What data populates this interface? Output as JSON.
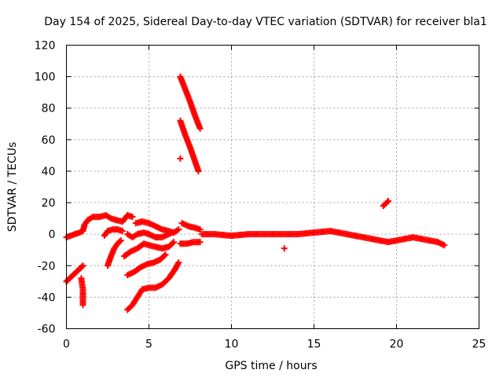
{
  "chart_data": {
    "type": "scatter",
    "title": "Day 154 of 2025, Sidereal Day-to-day VTEC variation (SDTVAR) for receiver bla1",
    "xlabel": "GPS time / hours",
    "ylabel": "SDTVAR / TECUs",
    "xlim": [
      0,
      25
    ],
    "ylim": [
      -60,
      120
    ],
    "xticks": [
      0,
      5,
      10,
      15,
      20,
      25
    ],
    "yticks": [
      -60,
      -40,
      -20,
      0,
      20,
      40,
      60,
      80,
      100,
      120
    ],
    "grid": true,
    "marker": "+",
    "color": "#ff0000",
    "series": [
      {
        "name": "arc-main",
        "points": [
          [
            0,
            -2
          ],
          [
            0.5,
            0
          ],
          [
            0.8,
            1
          ],
          [
            1.0,
            2
          ],
          [
            1.1,
            6
          ],
          [
            1.3,
            9
          ],
          [
            1.6,
            11
          ],
          [
            2.0,
            11
          ],
          [
            2.4,
            12
          ],
          [
            2.7,
            10
          ],
          [
            3.0,
            9
          ],
          [
            3.4,
            8
          ],
          [
            3.7,
            12
          ],
          [
            4.0,
            11
          ]
        ]
      },
      {
        "name": "arc-wave-upper",
        "points": [
          [
            4.2,
            7
          ],
          [
            4.6,
            8
          ],
          [
            5.0,
            7
          ],
          [
            5.4,
            5
          ],
          [
            5.8,
            3
          ],
          [
            6.2,
            2
          ],
          [
            6.5,
            1
          ],
          [
            6.8,
            3
          ]
        ]
      },
      {
        "name": "arc-wave-mid",
        "points": [
          [
            3.7,
            0
          ],
          [
            4.0,
            -2
          ],
          [
            4.3,
            0
          ],
          [
            4.7,
            1
          ],
          [
            5.0,
            0
          ],
          [
            5.4,
            -2
          ],
          [
            5.8,
            -2
          ],
          [
            6.2,
            0
          ],
          [
            6.4,
            1
          ]
        ]
      },
      {
        "name": "arc-wave-lower",
        "points": [
          [
            3.5,
            -14
          ],
          [
            3.9,
            -11
          ],
          [
            4.3,
            -9
          ],
          [
            4.7,
            -6
          ],
          [
            5.0,
            -7
          ],
          [
            5.4,
            -8
          ],
          [
            5.8,
            -9
          ],
          [
            6.2,
            -8
          ],
          [
            6.5,
            -5
          ]
        ]
      },
      {
        "name": "arc-steep-left",
        "points": [
          [
            2.5,
            -20
          ],
          [
            2.7,
            -14
          ],
          [
            2.9,
            -9
          ],
          [
            3.1,
            -6
          ],
          [
            3.3,
            -4
          ]
        ]
      },
      {
        "name": "arc-mid-left",
        "points": [
          [
            2.3,
            -1
          ],
          [
            2.5,
            2
          ],
          [
            2.8,
            3
          ],
          [
            3.1,
            3
          ],
          [
            3.4,
            2
          ]
        ]
      },
      {
        "name": "arc-deep",
        "points": [
          [
            3.7,
            -48
          ],
          [
            4.0,
            -45
          ],
          [
            4.3,
            -40
          ],
          [
            4.6,
            -35
          ],
          [
            5.0,
            -34
          ],
          [
            5.4,
            -34
          ],
          [
            5.8,
            -32
          ],
          [
            6.2,
            -28
          ],
          [
            6.6,
            -22
          ],
          [
            6.8,
            -18
          ]
        ]
      },
      {
        "name": "arc-descend",
        "points": [
          [
            3.7,
            -26
          ],
          [
            4.1,
            -24
          ],
          [
            4.5,
            -21
          ],
          [
            4.9,
            -19
          ],
          [
            5.3,
            -18
          ],
          [
            5.7,
            -16
          ],
          [
            6.0,
            -13
          ]
        ]
      },
      {
        "name": "arc-early-low",
        "points": [
          [
            0,
            -30
          ],
          [
            0.2,
            -28
          ],
          [
            0.4,
            -26
          ],
          [
            0.6,
            -24
          ],
          [
            0.8,
            -22
          ],
          [
            1.0,
            -20
          ]
        ]
      },
      {
        "name": "early-outliers",
        "points": [
          [
            0.9,
            -28
          ],
          [
            1.0,
            -35
          ],
          [
            1.0,
            -45
          ]
        ]
      },
      {
        "name": "spike-upper",
        "points": [
          [
            6.9,
            100
          ],
          [
            7.2,
            92
          ],
          [
            7.5,
            84
          ],
          [
            7.8,
            75
          ],
          [
            8.1,
            67
          ]
        ]
      },
      {
        "name": "spike-lower",
        "points": [
          [
            6.9,
            72
          ],
          [
            7.2,
            63
          ],
          [
            7.5,
            55
          ],
          [
            7.8,
            46
          ],
          [
            8.0,
            40
          ]
        ]
      },
      {
        "name": "spike-outlier",
        "points": [
          [
            6.9,
            48
          ]
        ]
      },
      {
        "name": "arc-post-spike",
        "points": [
          [
            7.0,
            7
          ],
          [
            7.4,
            5
          ],
          [
            7.8,
            4
          ],
          [
            8.1,
            3
          ]
        ]
      },
      {
        "name": "arc-flat-low",
        "points": [
          [
            6.9,
            -6
          ],
          [
            7.3,
            -6
          ],
          [
            7.7,
            -5
          ],
          [
            8.1,
            -5
          ]
        ]
      },
      {
        "name": "arc-long",
        "points": [
          [
            8.2,
            0
          ],
          [
            9,
            0
          ],
          [
            10,
            -1
          ],
          [
            11,
            0
          ],
          [
            12,
            0
          ],
          [
            13,
            0
          ],
          [
            14,
            0
          ],
          [
            15,
            1
          ],
          [
            16,
            2
          ],
          [
            17,
            0
          ],
          [
            18,
            -2
          ],
          [
            18.5,
            -3
          ],
          [
            19,
            -4
          ],
          [
            19.5,
            -5
          ],
          [
            20,
            -4
          ],
          [
            20.5,
            -3
          ],
          [
            21,
            -2
          ],
          [
            21.5,
            -3
          ],
          [
            22,
            -4
          ],
          [
            22.5,
            -5
          ],
          [
            22.9,
            -7
          ]
        ]
      },
      {
        "name": "mid-outlier",
        "points": [
          [
            13.2,
            -9
          ]
        ]
      },
      {
        "name": "late-outlier",
        "points": [
          [
            19.2,
            18
          ],
          [
            19.5,
            21
          ]
        ]
      }
    ]
  }
}
